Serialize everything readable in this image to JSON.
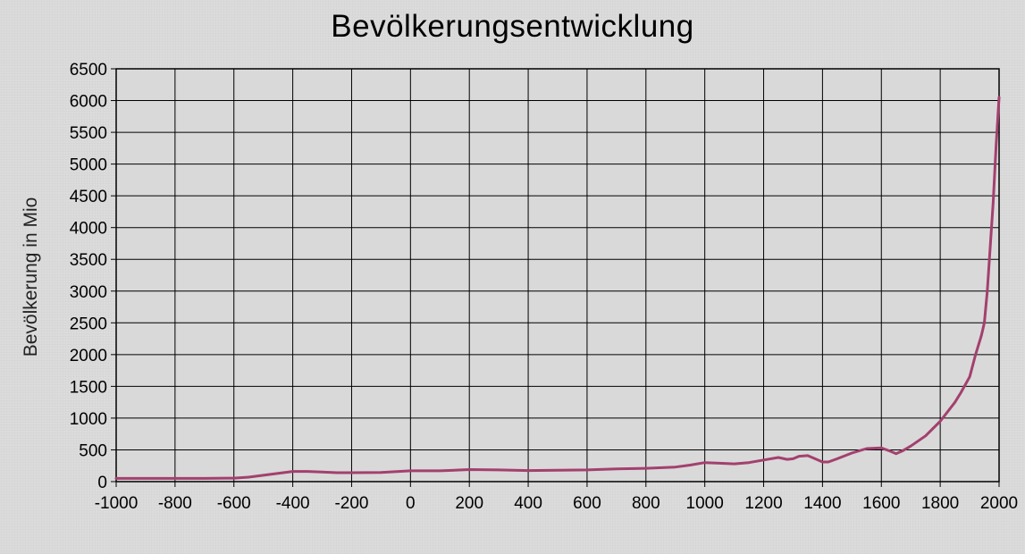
{
  "chart_data": {
    "type": "line",
    "title": "Bevölkerungsentwicklung",
    "xlabel": "",
    "ylabel": "Bevölkerung in Mio",
    "xlim": [
      -1000,
      2000
    ],
    "ylim": [
      0,
      6500
    ],
    "x_ticks": [
      -1000,
      -800,
      -600,
      -400,
      -200,
      0,
      200,
      400,
      600,
      800,
      1000,
      1200,
      1400,
      1600,
      1800,
      2000
    ],
    "y_ticks": [
      0,
      500,
      1000,
      1500,
      2000,
      2500,
      3000,
      3500,
      4000,
      4500,
      5000,
      5500,
      6000,
      6500
    ],
    "grid": true,
    "line_color": "#a3406e",
    "series": [
      {
        "x": [
          -1000,
          -900,
          -800,
          -700,
          -600,
          -550,
          -500,
          -450,
          -400,
          -350,
          -300,
          -250,
          -200,
          -100,
          0,
          100,
          200,
          300,
          400,
          500,
          600,
          700,
          800,
          900,
          950,
          1000,
          1050,
          1100,
          1150,
          1200,
          1250,
          1280,
          1300,
          1320,
          1350,
          1380,
          1400,
          1420,
          1450,
          1500,
          1550,
          1600,
          1630,
          1650,
          1670,
          1700,
          1750,
          1800,
          1850,
          1870,
          1900,
          1920,
          1940,
          1950,
          1960,
          1970,
          1980,
          1990,
          2000
        ],
        "y": [
          50,
          50,
          50,
          50,
          55,
          70,
          100,
          130,
          160,
          160,
          150,
          140,
          140,
          145,
          170,
          170,
          190,
          185,
          175,
          180,
          185,
          200,
          210,
          230,
          260,
          300,
          290,
          280,
          300,
          340,
          380,
          350,
          360,
          400,
          410,
          350,
          310,
          310,
          360,
          450,
          520,
          530,
          480,
          440,
          480,
          560,
          720,
          950,
          1250,
          1400,
          1650,
          2000,
          2300,
          2500,
          3000,
          3700,
          4400,
          5300,
          6050
        ]
      }
    ]
  }
}
